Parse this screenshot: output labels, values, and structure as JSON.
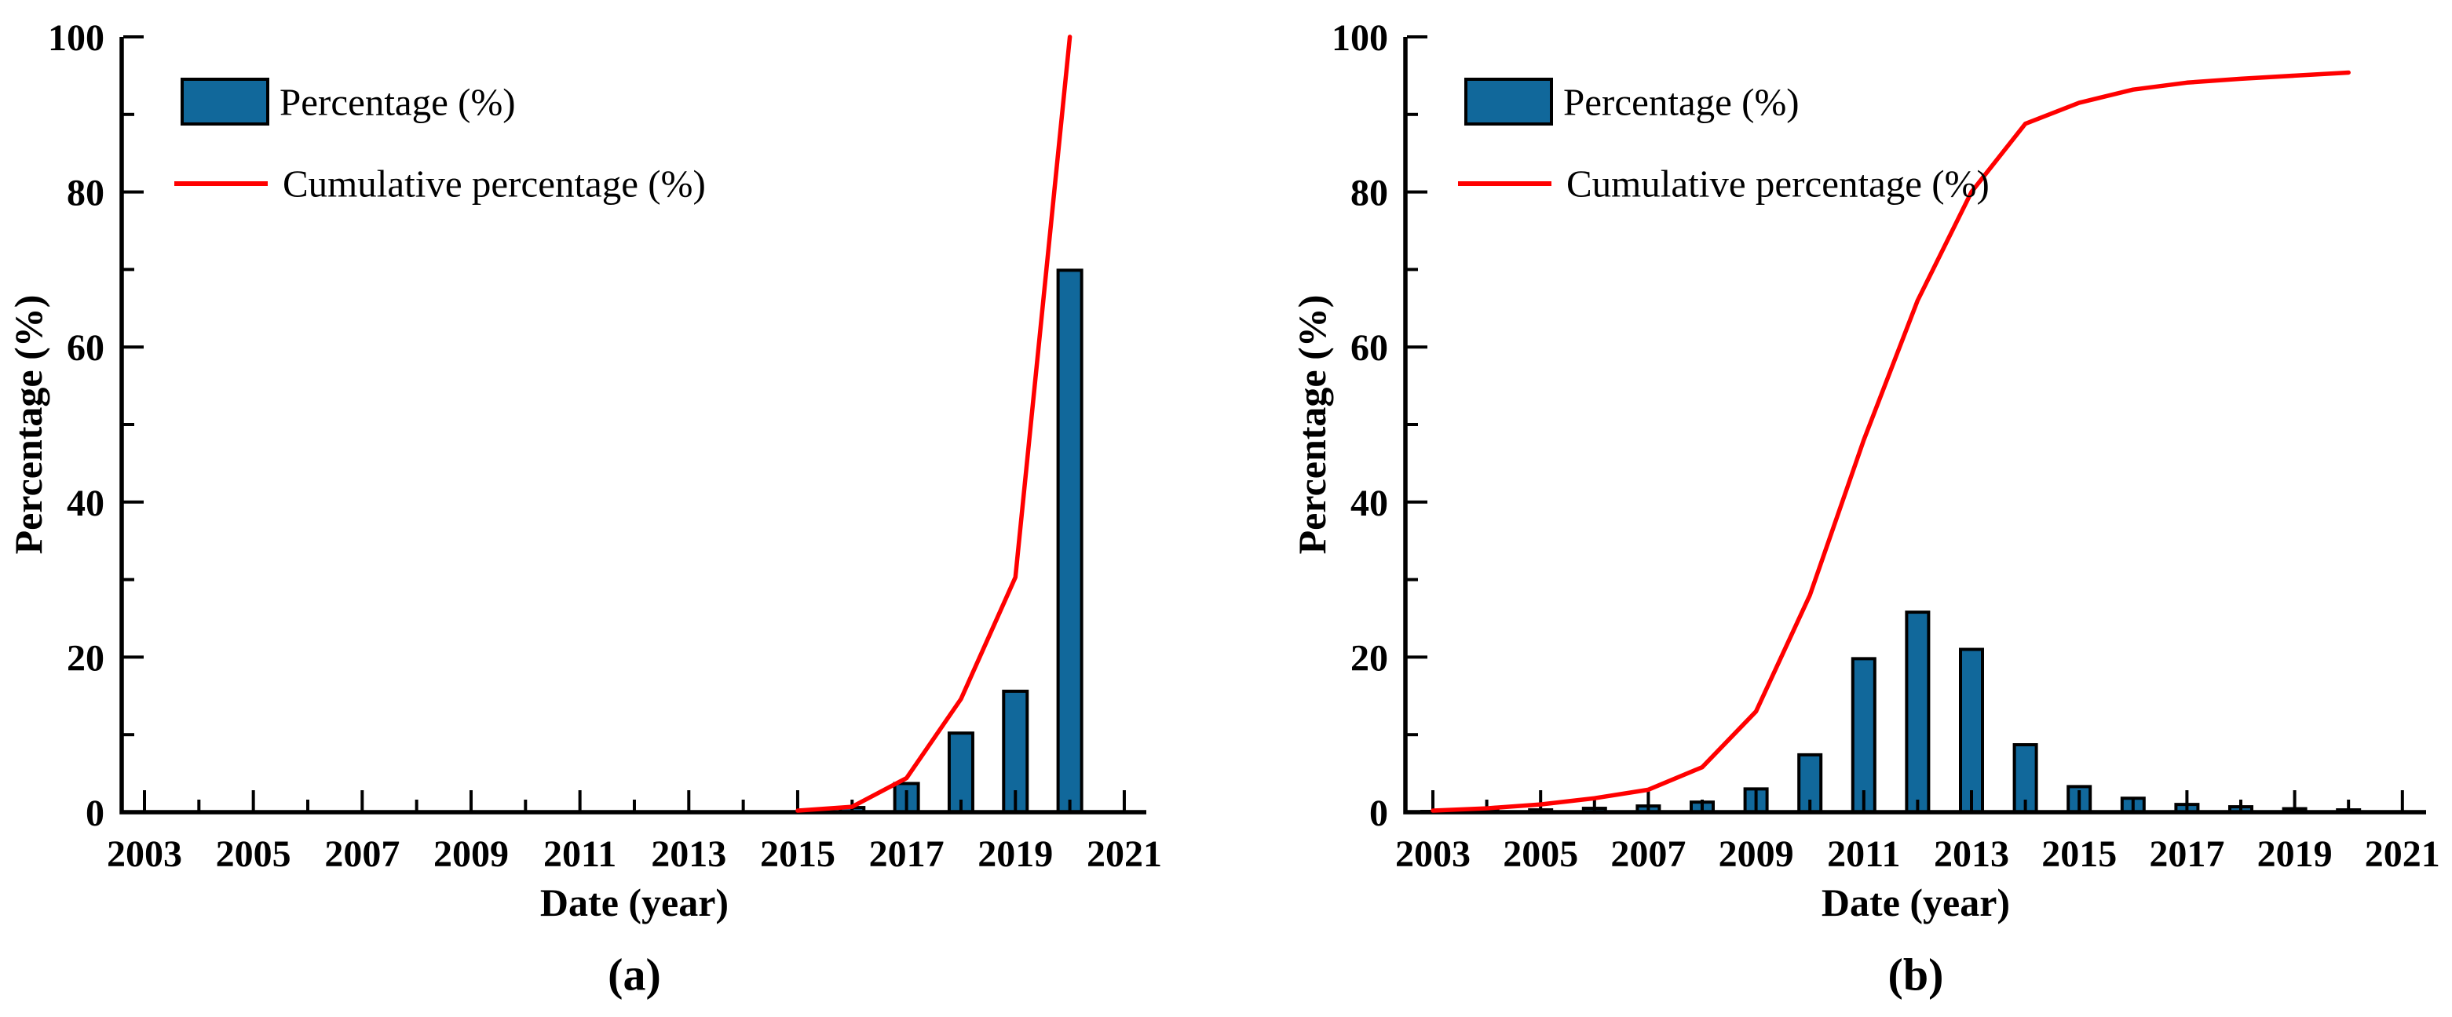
{
  "figure": {
    "background": "#ffffff",
    "description": "Two-panel Pareto figure: yearly percentage bars with cumulative percentage line"
  },
  "colors": {
    "bar_fill": "#11689B",
    "bar_stroke": "#000000",
    "line": "#FF0000",
    "axis": "#000000",
    "text": "#000000"
  },
  "legend": {
    "bar_label": "Percentage (%)",
    "line_label": "Cumulative percentage (%)"
  },
  "chart_data": [
    {
      "id": "a",
      "type": "bar",
      "subtype": "pareto: bars + cumulative line overlay",
      "panel_label": "(a)",
      "title": "",
      "xlabel": "Date (year)",
      "ylabel": "Percentage (%)",
      "xlim": [
        2002.6,
        2021.4
      ],
      "ylim": [
        0,
        100
      ],
      "grid": false,
      "legend_position": "top-left inside",
      "x_major_ticks": [
        2003,
        2005,
        2007,
        2009,
        2011,
        2013,
        2015,
        2017,
        2019,
        2021
      ],
      "x_minor_ticks": [
        2004,
        2006,
        2008,
        2010,
        2012,
        2014,
        2016,
        2018,
        2020
      ],
      "y_major_ticks": [
        0,
        20,
        40,
        60,
        80,
        100
      ],
      "y_minor_ticks": [
        10,
        30,
        50,
        70,
        90
      ],
      "bars": {
        "name": "Percentage (%)",
        "years": [
          2016,
          2017,
          2018,
          2019,
          2020
        ],
        "values": [
          0.6,
          3.7,
          10.2,
          15.6,
          69.9
        ]
      },
      "cumulative": {
        "name": "Cumulative percentage (%)",
        "years": [
          2015,
          2016,
          2017,
          2018,
          2019,
          2020
        ],
        "values": [
          0.2,
          0.7,
          4.4,
          14.6,
          30.3,
          100
        ]
      }
    },
    {
      "id": "b",
      "type": "bar",
      "subtype": "pareto: bars + cumulative line overlay",
      "panel_label": "(b)",
      "title": "",
      "xlabel": "Date (year)",
      "ylabel": "Percentage (%)",
      "xlim": [
        2002.6,
        2021.4
      ],
      "ylim": [
        0,
        100
      ],
      "grid": false,
      "legend_position": "top-left inside",
      "x_major_ticks": [
        2003,
        2005,
        2007,
        2009,
        2011,
        2013,
        2015,
        2017,
        2019,
        2021
      ],
      "x_minor_ticks": [
        2004,
        2006,
        2008,
        2010,
        2012,
        2014,
        2016,
        2018,
        2020
      ],
      "y_major_ticks": [
        0,
        20,
        40,
        60,
        80,
        100
      ],
      "y_minor_ticks": [
        10,
        30,
        50,
        70,
        90
      ],
      "bars": {
        "name": "Percentage (%)",
        "years": [
          2003,
          2004,
          2005,
          2006,
          2007,
          2008,
          2009,
          2010,
          2011,
          2012,
          2013,
          2014,
          2015,
          2016,
          2017,
          2018,
          2019,
          2020
        ],
        "values": [
          0.1,
          0.15,
          0.3,
          0.5,
          0.8,
          1.3,
          3.0,
          7.4,
          19.8,
          25.8,
          21.0,
          8.7,
          3.3,
          1.8,
          1.0,
          0.7,
          0.45,
          0.3
        ]
      },
      "cumulative": {
        "name": "Cumulative percentage (%)",
        "years": [
          2003,
          2004,
          2005,
          2006,
          2007,
          2008,
          2009,
          2010,
          2011,
          2012,
          2013,
          2014,
          2015,
          2016,
          2017,
          2018,
          2019,
          2020
        ],
        "values": [
          0.2,
          0.5,
          1.0,
          1.8,
          2.9,
          5.8,
          13.0,
          28.0,
          48.0,
          66.0,
          80.0,
          88.8,
          91.5,
          93.2,
          94.1,
          94.6,
          95.0,
          95.4
        ]
      }
    }
  ]
}
